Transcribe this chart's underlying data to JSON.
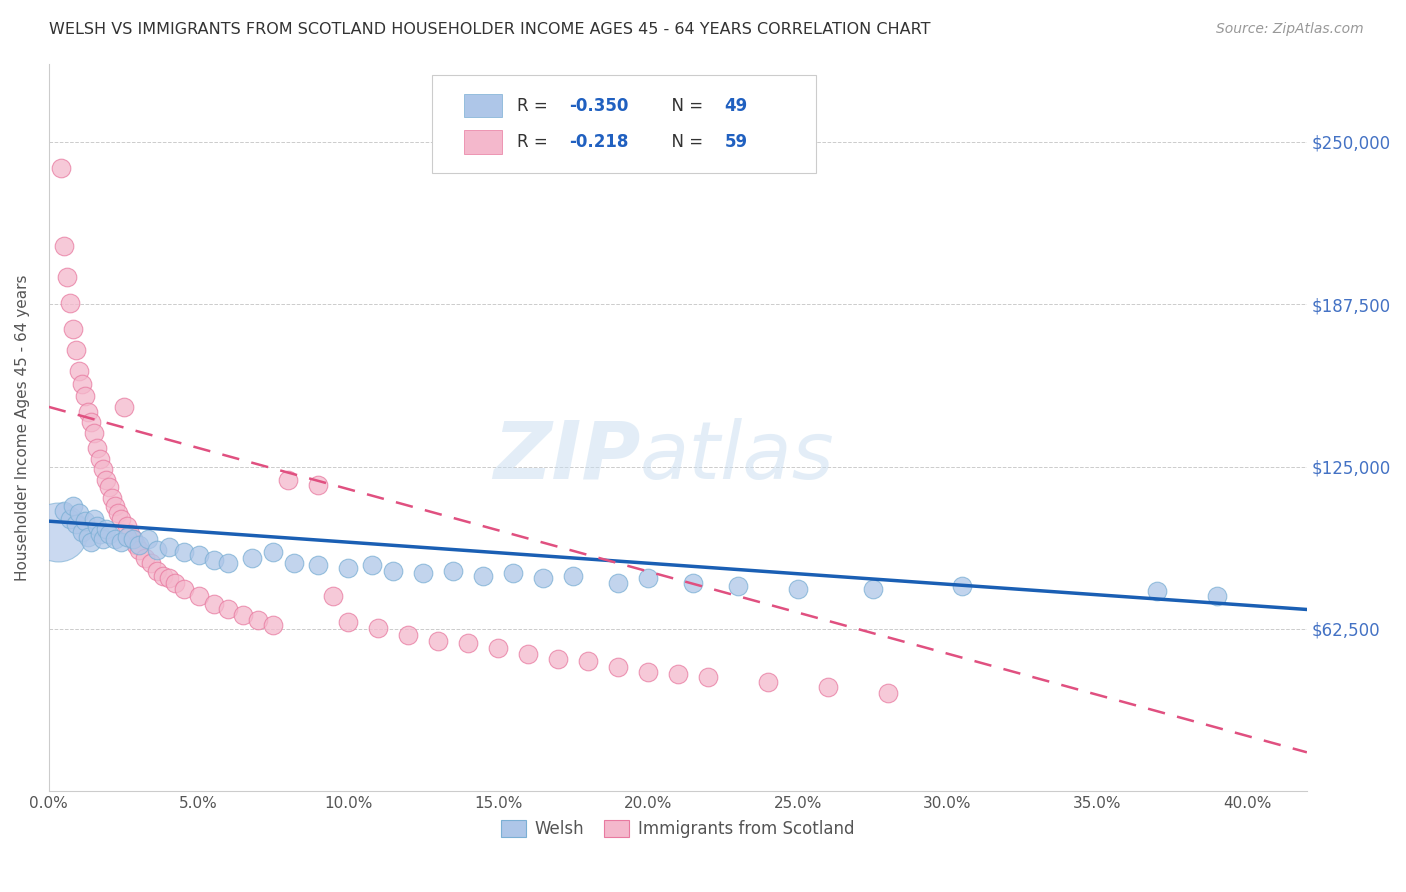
{
  "title": "WELSH VS IMMIGRANTS FROM SCOTLAND HOUSEHOLDER INCOME AGES 45 - 64 YEARS CORRELATION CHART",
  "source": "Source: ZipAtlas.com",
  "ylabel": "Householder Income Ages 45 - 64 years",
  "xlabel_ticks": [
    "0.0%",
    "5.0%",
    "10.0%",
    "15.0%",
    "20.0%",
    "25.0%",
    "30.0%",
    "35.0%",
    "40.0%"
  ],
  "ytick_labels": [
    "$62,500",
    "$125,000",
    "$187,500",
    "$250,000"
  ],
  "ytick_values": [
    62500,
    125000,
    187500,
    250000
  ],
  "xlim": [
    0.0,
    0.42
  ],
  "ylim": [
    0,
    280000
  ],
  "welsh_color": "#aec6e8",
  "welsh_edge_color": "#7bafd4",
  "scotland_color": "#f4b8cc",
  "scotland_edge_color": "#e87aa0",
  "welsh_line_color": "#1a5fb4",
  "scotland_line_color": "#e05080",
  "point_size": 180,
  "welsh_scatter_x": [
    0.005,
    0.007,
    0.008,
    0.009,
    0.01,
    0.011,
    0.012,
    0.013,
    0.014,
    0.015,
    0.016,
    0.017,
    0.018,
    0.019,
    0.02,
    0.022,
    0.024,
    0.026,
    0.028,
    0.03,
    0.033,
    0.036,
    0.04,
    0.045,
    0.05,
    0.055,
    0.06,
    0.068,
    0.075,
    0.082,
    0.09,
    0.1,
    0.108,
    0.115,
    0.125,
    0.135,
    0.145,
    0.155,
    0.165,
    0.175,
    0.19,
    0.2,
    0.215,
    0.23,
    0.25,
    0.275,
    0.305,
    0.37,
    0.39
  ],
  "welsh_scatter_y": [
    108000,
    105000,
    110000,
    103000,
    107000,
    100000,
    104000,
    98000,
    96000,
    105000,
    102000,
    99000,
    97000,
    101000,
    99000,
    97000,
    96000,
    98000,
    97000,
    95000,
    97000,
    93000,
    94000,
    92000,
    91000,
    89000,
    88000,
    90000,
    92000,
    88000,
    87000,
    86000,
    87000,
    85000,
    84000,
    85000,
    83000,
    84000,
    82000,
    83000,
    80000,
    82000,
    80000,
    79000,
    78000,
    78000,
    79000,
    77000,
    75000
  ],
  "scotland_scatter_x": [
    0.004,
    0.005,
    0.006,
    0.007,
    0.008,
    0.009,
    0.01,
    0.011,
    0.012,
    0.013,
    0.014,
    0.015,
    0.016,
    0.017,
    0.018,
    0.019,
    0.02,
    0.021,
    0.022,
    0.023,
    0.024,
    0.025,
    0.026,
    0.027,
    0.028,
    0.029,
    0.03,
    0.032,
    0.034,
    0.036,
    0.038,
    0.04,
    0.042,
    0.045,
    0.05,
    0.055,
    0.06,
    0.065,
    0.07,
    0.075,
    0.08,
    0.09,
    0.095,
    0.1,
    0.11,
    0.12,
    0.13,
    0.14,
    0.15,
    0.16,
    0.17,
    0.18,
    0.19,
    0.2,
    0.21,
    0.22,
    0.24,
    0.26,
    0.28
  ],
  "scotland_scatter_y": [
    240000,
    210000,
    198000,
    188000,
    178000,
    170000,
    162000,
    157000,
    152000,
    146000,
    142000,
    138000,
    132000,
    128000,
    124000,
    120000,
    117000,
    113000,
    110000,
    107000,
    105000,
    148000,
    102000,
    99000,
    97000,
    95000,
    93000,
    90000,
    88000,
    85000,
    83000,
    82000,
    80000,
    78000,
    75000,
    72000,
    70000,
    68000,
    66000,
    64000,
    120000,
    118000,
    75000,
    65000,
    63000,
    60000,
    58000,
    57000,
    55000,
    53000,
    51000,
    50000,
    48000,
    46000,
    45000,
    44000,
    42000,
    40000,
    38000
  ],
  "welsh_line_x0": 0.0,
  "welsh_line_x1": 0.42,
  "welsh_line_y0": 104000,
  "welsh_line_y1": 70000,
  "scotland_line_x0": 0.0,
  "scotland_line_x1": 0.42,
  "scotland_line_y0": 148000,
  "scotland_line_y1": 15000
}
